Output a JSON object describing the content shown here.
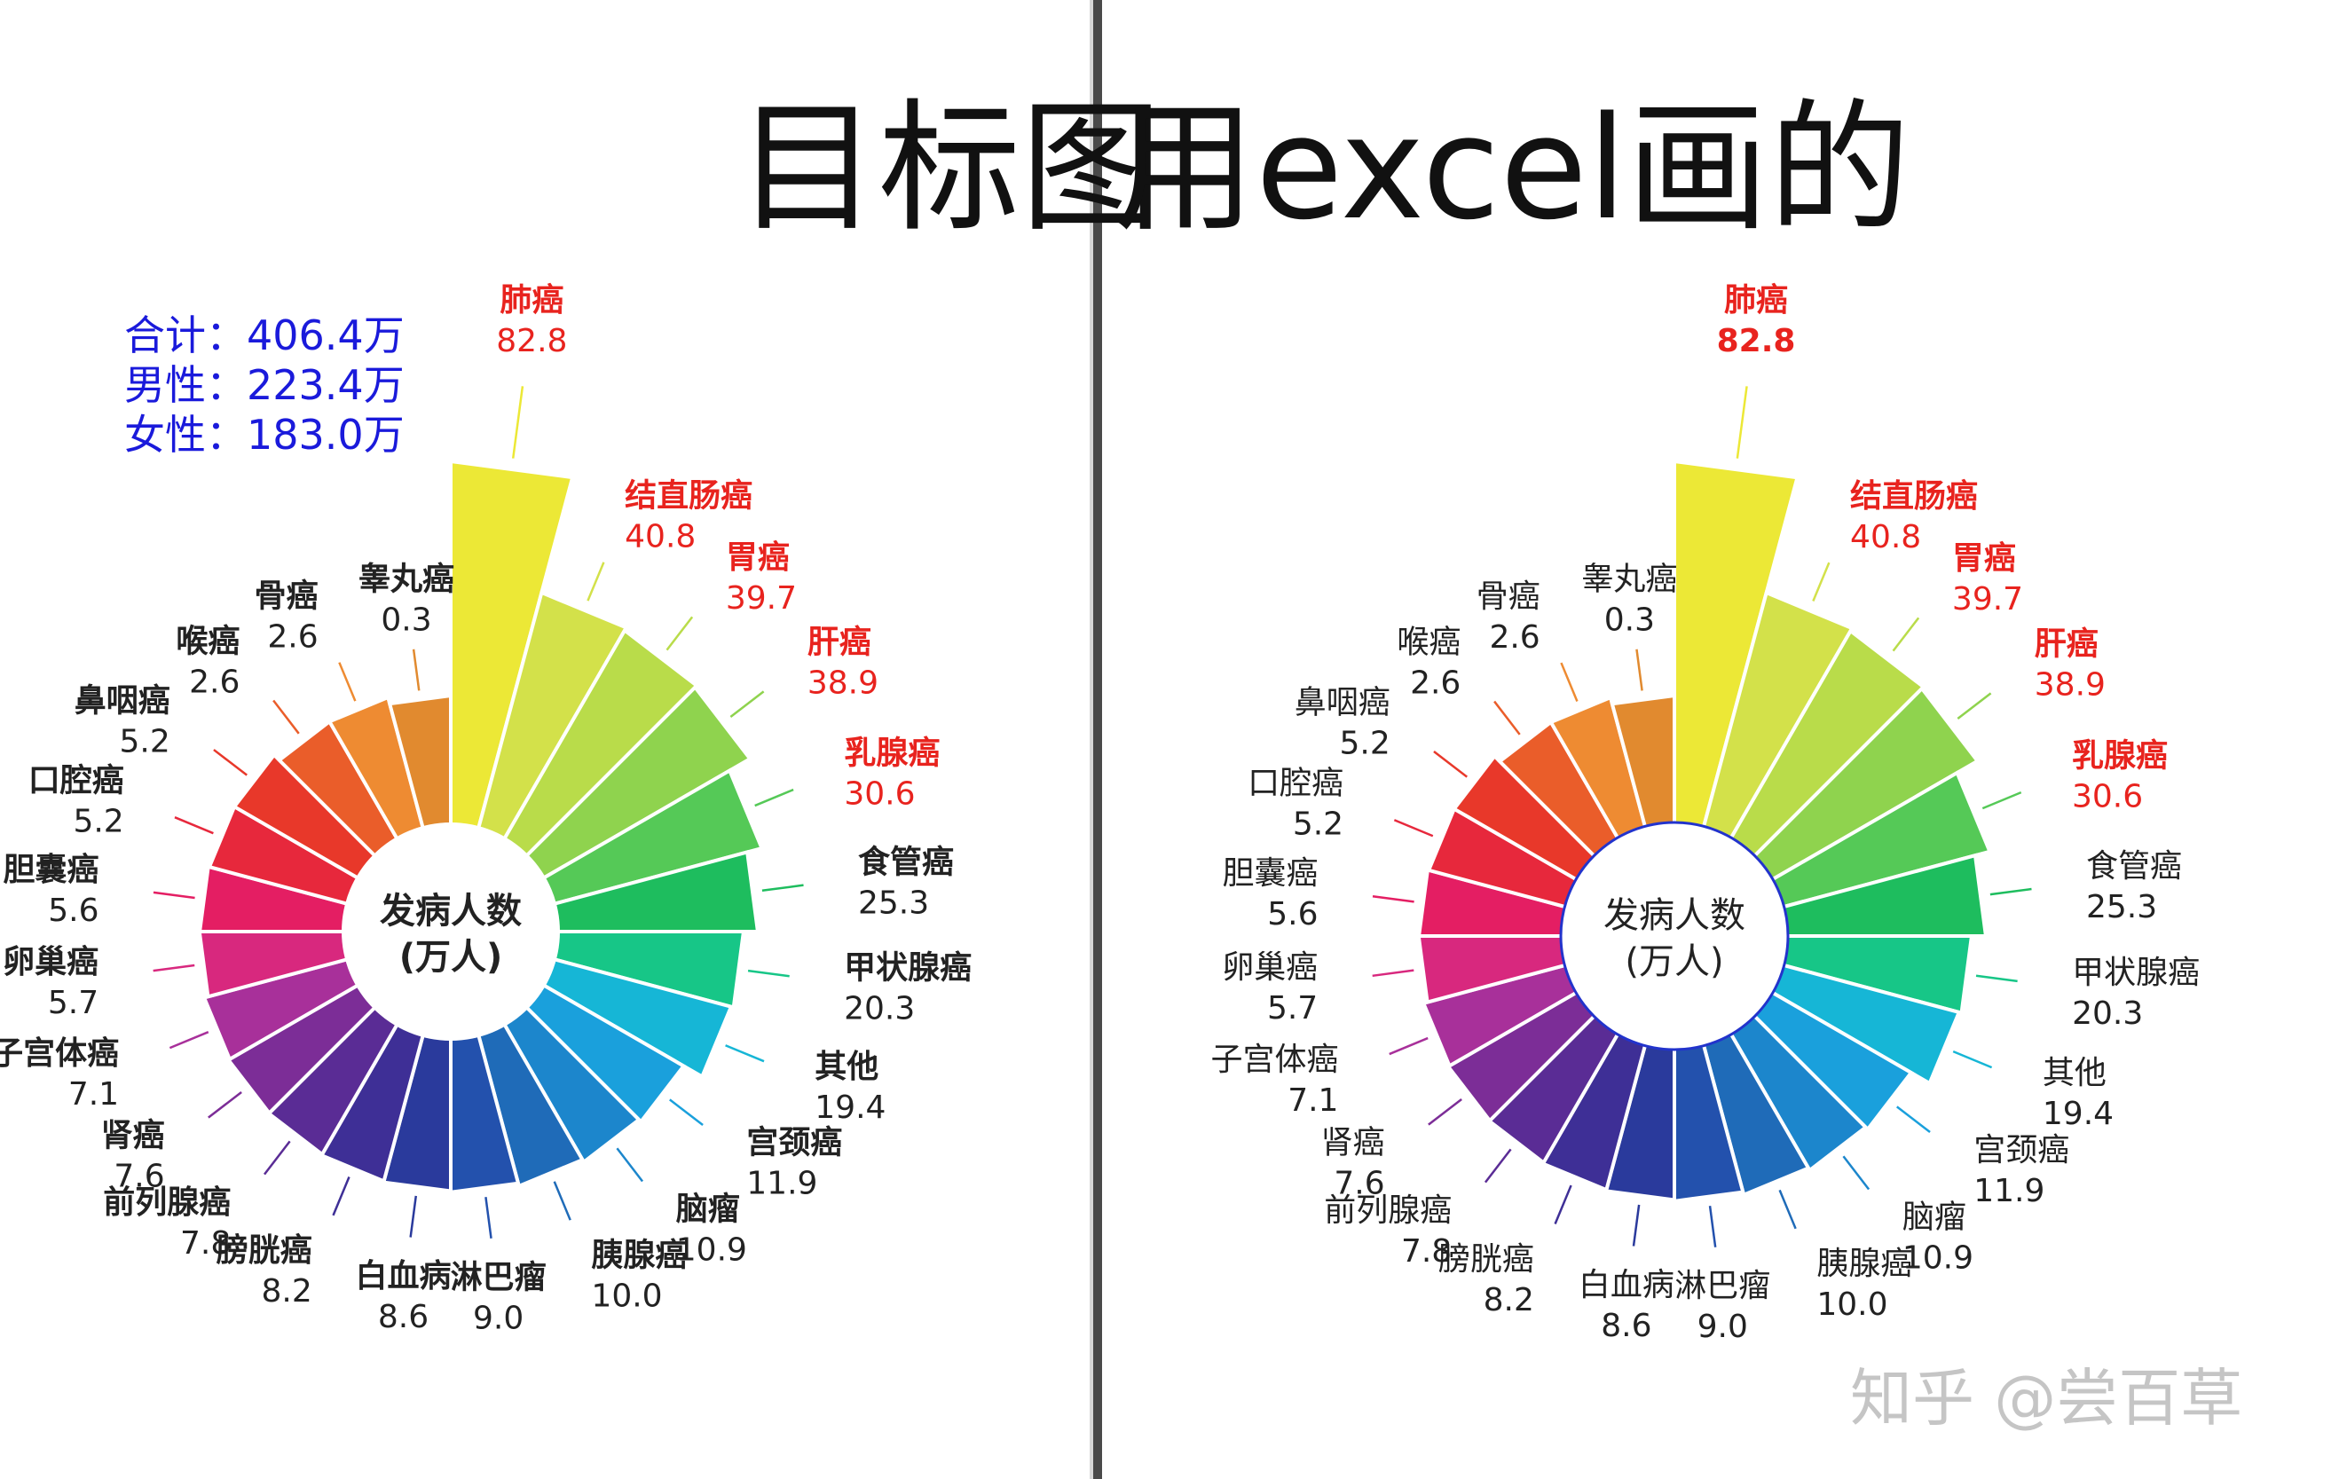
{
  "headings": {
    "target": "目标图",
    "excel": "用excel画的"
  },
  "summary": {
    "total": "合计：406.4万",
    "male": "男性：223.4万",
    "female": "女性：183.0万"
  },
  "watermark": "知乎 @尝百草",
  "chart_data": [
    {
      "type": "bar",
      "variant": "radial-rose",
      "center_label": [
        "发病人数",
        "(万人)"
      ],
      "categories": [
        "肺癌",
        "结直肠癌",
        "胃癌",
        "肝癌",
        "乳腺癌",
        "食管癌",
        "甲状腺癌",
        "其他",
        "宫颈癌",
        "脑瘤",
        "胰腺癌",
        "淋巴瘤",
        "白血病",
        "膀胱癌",
        "前列腺癌",
        "肾癌",
        "子宫体癌",
        "卵巢癌",
        "胆囊癌",
        "口腔癌",
        "鼻咽癌",
        "喉癌",
        "骨癌",
        "睾丸癌"
      ],
      "values": [
        82.8,
        40.8,
        39.7,
        38.9,
        30.6,
        25.3,
        20.3,
        19.4,
        11.9,
        10.9,
        10.0,
        9.0,
        8.6,
        8.2,
        7.8,
        7.6,
        7.1,
        5.7,
        5.6,
        5.2,
        5.2,
        2.6,
        2.6,
        0.3
      ],
      "value_labels": [
        "82.8",
        "40.8",
        "39.7",
        "38.9",
        "30.6",
        "25.3",
        "20.3",
        "19.4",
        "11.9",
        "10.9",
        "10.0",
        "9.0",
        "8.6",
        "8.2",
        "7.8",
        "7.6",
        "7.1",
        "5.7",
        "5.6",
        "5.2",
        "5.2",
        "2.6",
        "2.6",
        "0.3"
      ],
      "highlighted_categories": [
        "肺癌",
        "结直肠癌",
        "胃癌",
        "肝癌",
        "乳腺癌"
      ],
      "highlight_color": "#e8231e",
      "colors": [
        "#ece836",
        "#d3e14a",
        "#b9dc4a",
        "#8fd34e",
        "#55c957",
        "#1ebd5e",
        "#17c687",
        "#16b6d6",
        "#1aa0dc",
        "#1c86cc",
        "#1f6bb8",
        "#2351ad",
        "#2a3a9c",
        "#3e2f96",
        "#5a2c95",
        "#7c2d97",
        "#a8309a",
        "#d8287e",
        "#e41e63",
        "#e7283c",
        "#e8382a",
        "#ea5d2a",
        "#ee8b32",
        "#e18a2f"
      ]
    },
    {
      "type": "bar",
      "variant": "radial-rose",
      "center_label": [
        "发病人数",
        "(万人)"
      ],
      "categories": [
        "肺癌",
        "结直肠癌",
        "胃癌",
        "肝癌",
        "乳腺癌",
        "食管癌",
        "甲状腺癌",
        "其他",
        "宫颈癌",
        "脑瘤",
        "胰腺癌",
        "淋巴瘤",
        "白血病",
        "膀胱癌",
        "前列腺癌",
        "肾癌",
        "子宫体癌",
        "卵巢癌",
        "胆囊癌",
        "口腔癌",
        "鼻咽癌",
        "喉癌",
        "骨癌",
        "睾丸癌"
      ],
      "values": [
        82.8,
        40.8,
        39.7,
        38.9,
        30.6,
        25.3,
        20.3,
        19.4,
        11.9,
        10.9,
        10.0,
        9.0,
        8.6,
        8.2,
        7.8,
        7.6,
        7.1,
        5.7,
        5.6,
        5.2,
        5.2,
        2.6,
        2.6,
        0.3
      ],
      "value_labels": [
        "82.8",
        "40.8",
        "39.7",
        "38.9",
        "30.6",
        "25.3",
        "20.3",
        "19.4",
        "11.9",
        "10.9",
        "10.0",
        "9.0",
        "8.6",
        "8.2",
        "7.8",
        "7.6",
        "7.1",
        "5.7",
        "5.6",
        "5.2",
        "5.2",
        "2.6",
        "2.6",
        "0.3"
      ],
      "highlighted_categories": [
        "肺癌",
        "结直肠癌",
        "胃癌",
        "肝癌",
        "乳腺癌"
      ],
      "highlight_color": "#e8231e",
      "colors": [
        "#ece836",
        "#d3e14a",
        "#b9dc4a",
        "#8fd34e",
        "#55c957",
        "#1ebd5e",
        "#17c687",
        "#16b6d6",
        "#1aa0dc",
        "#1c86cc",
        "#1f6bb8",
        "#2351ad",
        "#2a3a9c",
        "#3e2f96",
        "#5a2c95",
        "#7c2d97",
        "#a8309a",
        "#d8287e",
        "#e41e63",
        "#e7283c",
        "#e8382a",
        "#ea5d2a",
        "#ee8b32",
        "#e18a2f"
      ]
    }
  ]
}
